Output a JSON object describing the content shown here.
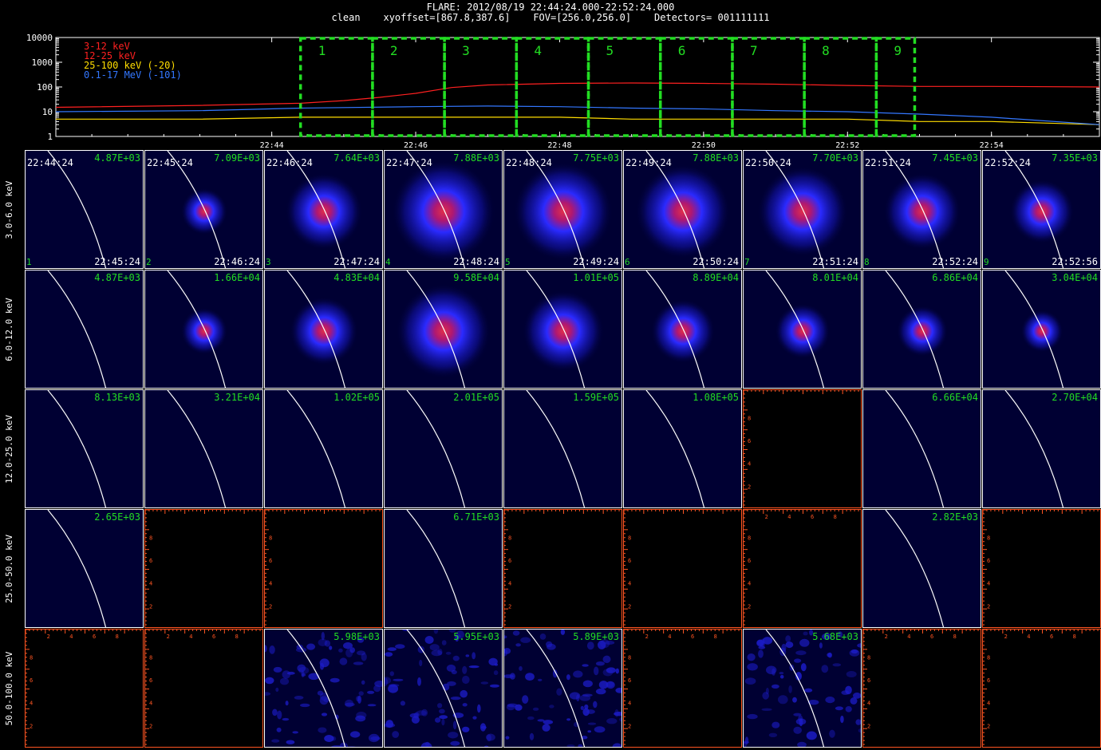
{
  "header": {
    "title": "FLARE: 2012/08/19 22:44:24.000-22:52:24.000",
    "subtitle": "clean    xyoffset=[867.8,387.6]    FOV=[256.0,256.0]    Detectors= 001111111"
  },
  "chart_data": [
    {
      "type": "line",
      "title": "",
      "yscale": "log",
      "ylim": [
        1,
        10000
      ],
      "y_tick_labels": [
        "10000",
        "1000",
        "100",
        "10",
        "1"
      ],
      "x_tick_labels": [
        "22:44",
        "22:46",
        "22:48",
        "22:50",
        "22:52",
        "22:54"
      ],
      "xlim_minutes": [
        "22:41:00",
        "22:55:30"
      ],
      "legend_placement": "top-left",
      "series": [
        {
          "name": "3-12 keV",
          "color": "#ff2020",
          "x": [
            "22:41:00",
            "22:43:00",
            "22:44:24",
            "22:45:00",
            "22:45:30",
            "22:46:00",
            "22:46:30",
            "22:47:00",
            "22:48:00",
            "22:49:00",
            "22:50:00",
            "22:51:00",
            "22:52:00",
            "22:53:00",
            "22:54:00",
            "22:55:30"
          ],
          "y": [
            15,
            18,
            22,
            28,
            38,
            55,
            95,
            120,
            140,
            145,
            140,
            130,
            115,
            105,
            105,
            100
          ]
        },
        {
          "name": "12-25 keV",
          "color": "#ff2020",
          "x": [
            "22:41:00",
            "22:55:30"
          ],
          "y": [
            null,
            null
          ]
        },
        {
          "name": "25-100 keV (-20)",
          "color": "#ffdd00",
          "x": [
            "22:41:00",
            "22:43:00",
            "22:44:24",
            "22:46:00",
            "22:47:00",
            "22:48:00",
            "22:49:00",
            "22:50:00",
            "22:51:00",
            "22:52:00",
            "22:53:00",
            "22:54:00",
            "22:55:30"
          ],
          "y": [
            5,
            5,
            6,
            6,
            6,
            6,
            5,
            5,
            5,
            5,
            4,
            4,
            3
          ]
        },
        {
          "name": "0.1-17 MeV (-101)",
          "color": "#3377ff",
          "x": [
            "22:41:00",
            "22:43:00",
            "22:44:24",
            "22:46:00",
            "22:47:00",
            "22:48:00",
            "22:49:00",
            "22:50:00",
            "22:51:00",
            "22:52:00",
            "22:53:00",
            "22:54:00",
            "22:55:30"
          ],
          "y": [
            10,
            11,
            14,
            16,
            17,
            16,
            14,
            13,
            11,
            10,
            8,
            6,
            3
          ]
        }
      ],
      "intervals": [
        {
          "label": "1",
          "start": "22:44:24",
          "end": "22:45:24"
        },
        {
          "label": "2",
          "start": "22:45:24",
          "end": "22:46:24"
        },
        {
          "label": "3",
          "start": "22:46:24",
          "end": "22:47:24"
        },
        {
          "label": "4",
          "start": "22:47:24",
          "end": "22:48:24"
        },
        {
          "label": "5",
          "start": "22:48:24",
          "end": "22:49:24"
        },
        {
          "label": "6",
          "start": "22:49:24",
          "end": "22:50:24"
        },
        {
          "label": "7",
          "start": "22:50:24",
          "end": "22:51:24"
        },
        {
          "label": "8",
          "start": "22:51:24",
          "end": "22:52:24"
        },
        {
          "label": "9",
          "start": "22:52:24",
          "end": "22:52:56"
        }
      ]
    },
    {
      "type": "heatmap",
      "title": "image grid",
      "energy_bands": [
        "3.0-6.0 keV",
        "6.0-12.0 keV",
        "12.0-25.0 keV",
        "25.0-50.0 keV",
        "50.0-100.0 keV"
      ],
      "time_starts": [
        "22:44:24",
        "22:45:24",
        "22:46:24",
        "22:47:24",
        "22:48:24",
        "22:49:24",
        "22:50:24",
        "22:51:24",
        "22:52:24"
      ],
      "time_ends": [
        "22:45:24",
        "22:46:24",
        "22:47:24",
        "22:48:24",
        "22:49:24",
        "22:50:24",
        "22:51:24",
        "22:52:24",
        "22:52:56"
      ],
      "interval_numbers": [
        "1",
        "2",
        "3",
        "4",
        "5",
        "6",
        "7",
        "8",
        "9"
      ],
      "peak_values": [
        [
          "4.87E+03",
          "7.09E+03",
          "7.64E+03",
          "7.88E+03",
          "7.75E+03",
          "7.88E+03",
          "7.70E+03",
          "7.45E+03",
          "7.35E+03"
        ],
        [
          "4.87E+03",
          "1.66E+04",
          "4.83E+04",
          "9.58E+04",
          "1.01E+05",
          "8.89E+04",
          "8.01E+04",
          "6.86E+04",
          "3.04E+04"
        ],
        [
          "8.13E+03",
          "3.21E+04",
          "1.02E+05",
          "2.01E+05",
          "1.59E+05",
          "1.08E+05",
          null,
          "6.66E+04",
          "2.70E+04"
        ],
        [
          "2.65E+03",
          null,
          null,
          "6.71E+03",
          null,
          null,
          null,
          "2.82E+03",
          null
        ],
        [
          null,
          null,
          "5.98E+03",
          "5.95E+03",
          "5.89E+03",
          null,
          "5.68E+03",
          null,
          null
        ]
      ],
      "source_strength": [
        [
          0.0,
          0.35,
          0.7,
          1.0,
          0.95,
          0.9,
          0.85,
          0.7,
          0.55
        ],
        [
          0.0,
          0.35,
          0.6,
          0.9,
          0.75,
          0.55,
          0.45,
          0.4,
          0.3
        ],
        [
          0.0,
          0.0,
          0.0,
          0.0,
          0.0,
          0.0,
          0.0,
          0.0,
          0.0
        ],
        [
          0.0,
          0.0,
          0.0,
          0.0,
          0.0,
          0.0,
          0.0,
          0.0,
          0.0
        ],
        [
          0.0,
          0.0,
          0.0,
          0.0,
          0.0,
          0.0,
          0.0,
          0.0,
          0.0
        ]
      ],
      "noise_texture": [
        [
          false,
          false,
          false,
          false,
          false,
          false,
          false,
          false,
          false
        ],
        [
          false,
          false,
          false,
          false,
          false,
          false,
          false,
          false,
          false
        ],
        [
          false,
          false,
          false,
          false,
          false,
          false,
          false,
          false,
          false
        ],
        [
          false,
          false,
          false,
          false,
          false,
          false,
          false,
          false,
          false
        ],
        [
          false,
          false,
          true,
          true,
          true,
          false,
          true,
          false,
          false
        ]
      ],
      "empty_axis_tick_labels": [
        "2",
        "4",
        "6",
        "8"
      ],
      "colors": {
        "panel_bg": "#000033",
        "empty_bg": "#000000",
        "empty_axis": "#ff5522",
        "value_text": "#22dd22",
        "limb": "#ffffff",
        "interval_box": "#22dd22"
      }
    }
  ]
}
